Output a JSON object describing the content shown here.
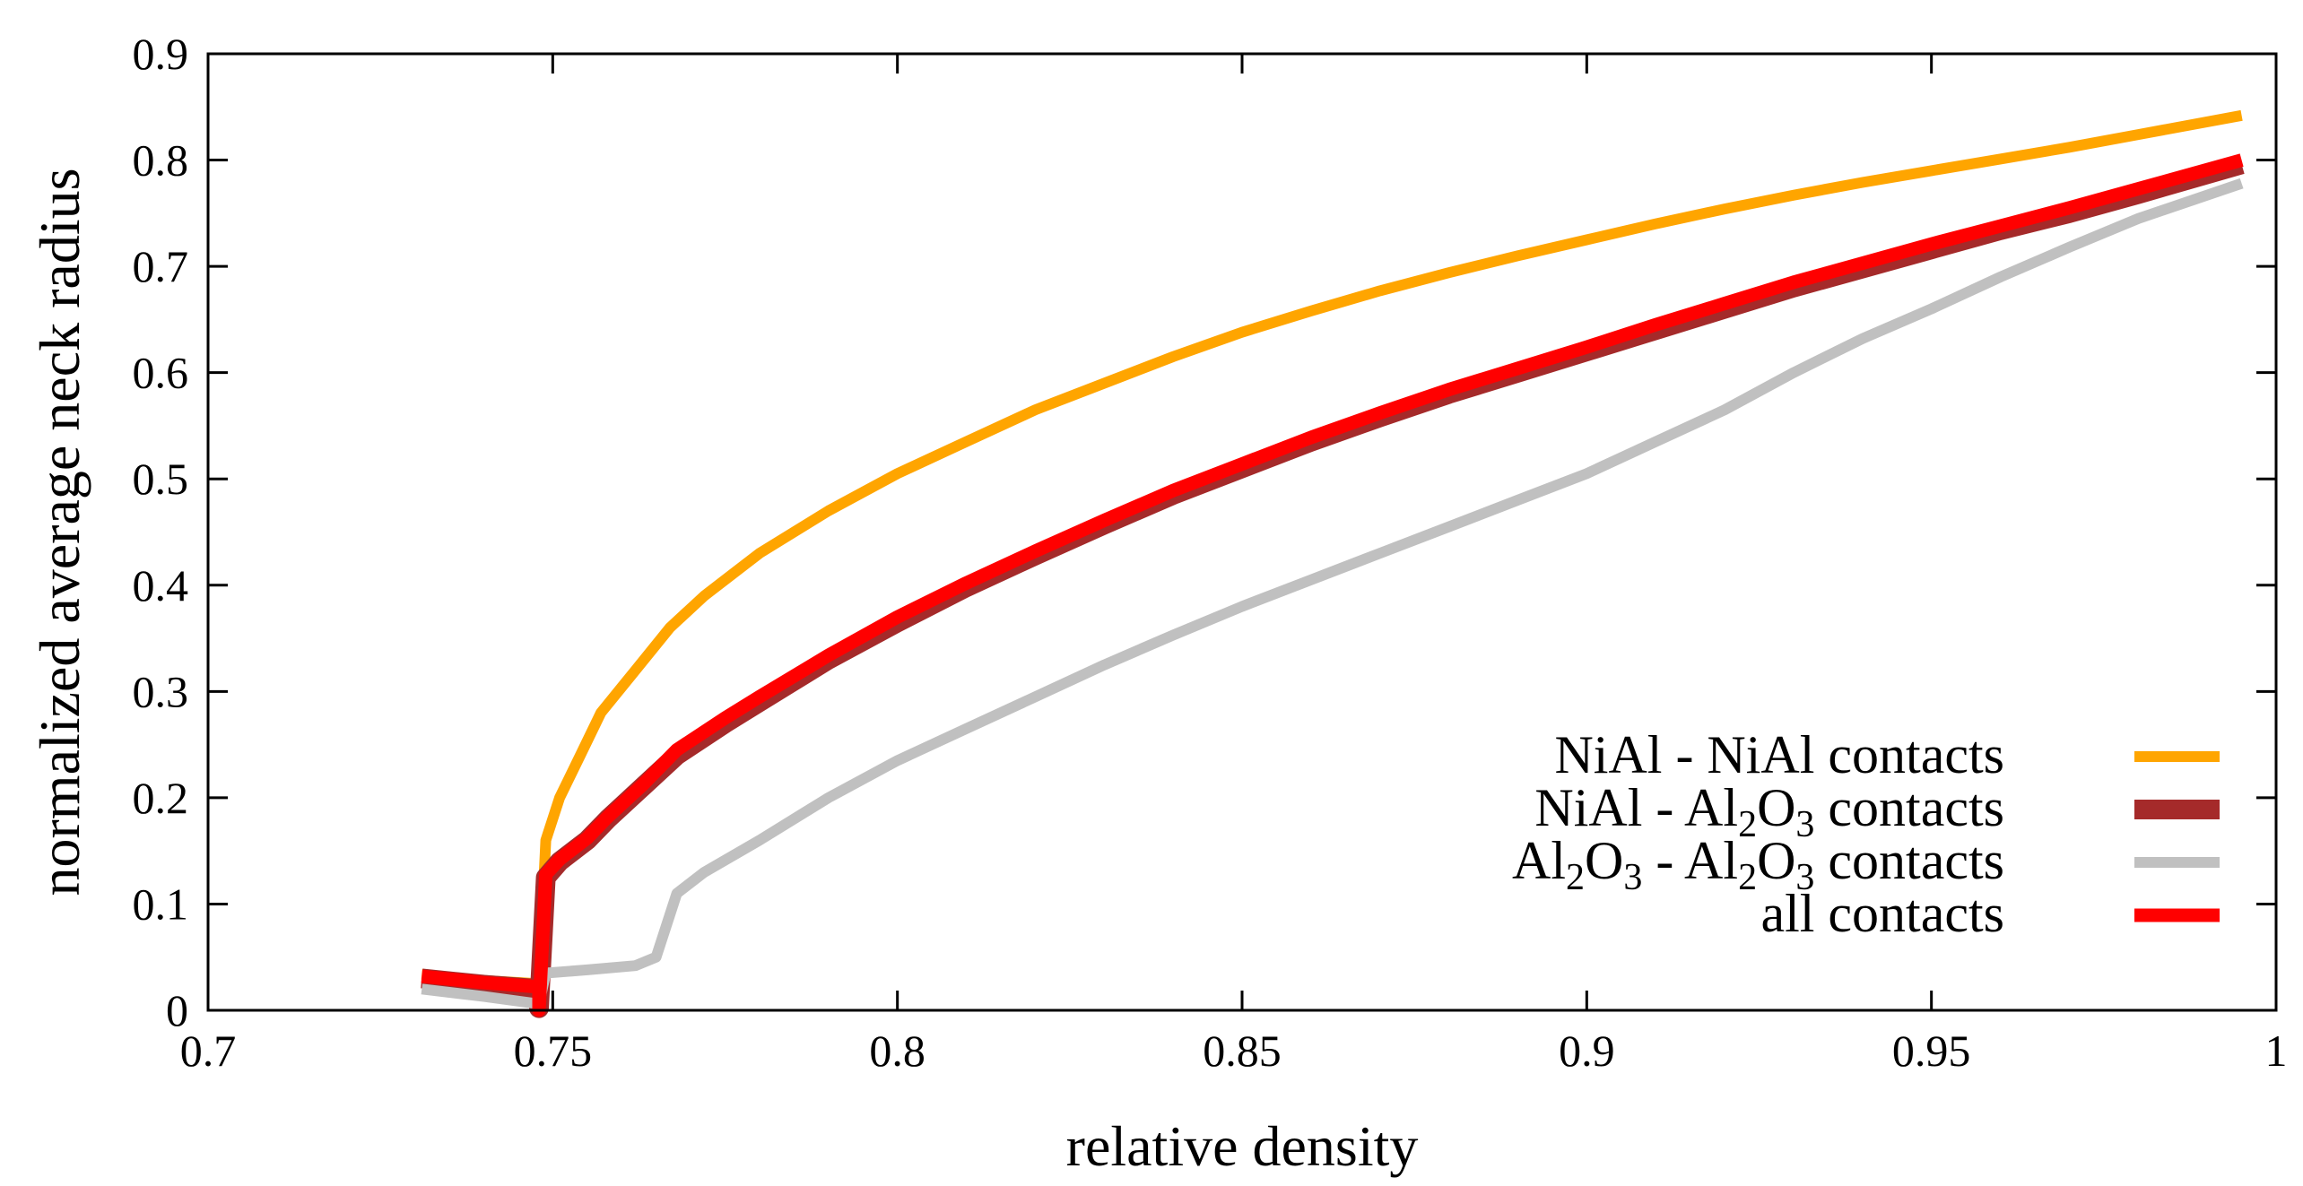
{
  "chart_data": {
    "type": "line",
    "title": "",
    "xlabel": "relative density",
    "ylabel": "normalized average neck radius",
    "xlim": [
      0.7,
      1.0
    ],
    "ylim": [
      0,
      0.9
    ],
    "xticks": [
      0.7,
      0.75,
      0.8,
      0.85,
      0.9,
      0.95,
      1.0
    ],
    "xtick_labels": [
      "0.7",
      "0.75",
      "0.8",
      "0.85",
      "0.9",
      "0.95",
      "1"
    ],
    "yticks": [
      0,
      0.1,
      0.2,
      0.3,
      0.4,
      0.5,
      0.6,
      0.7,
      0.8,
      0.9
    ],
    "ytick_labels": [
      "0",
      "0.1",
      "0.2",
      "0.3",
      "0.4",
      "0.5",
      "0.6",
      "0.7",
      "0.8",
      "0.9"
    ],
    "grid": false,
    "legend_position": "bottom-right",
    "series": [
      {
        "name": "NiAl - NiAl contacts",
        "label_parts": [
          [
            "NiAl - NiAl contacts",
            false
          ]
        ],
        "color": "#ffa500",
        "weight": "normal",
        "points": [
          [
            0.731,
            0.034
          ],
          [
            0.74,
            0.028
          ],
          [
            0.748,
            0.025
          ],
          [
            0.749,
            0.16
          ],
          [
            0.751,
            0.2
          ],
          [
            0.754,
            0.24
          ],
          [
            0.757,
            0.28
          ],
          [
            0.762,
            0.32
          ],
          [
            0.767,
            0.36
          ],
          [
            0.772,
            0.39
          ],
          [
            0.78,
            0.43
          ],
          [
            0.79,
            0.47
          ],
          [
            0.8,
            0.505
          ],
          [
            0.81,
            0.535
          ],
          [
            0.82,
            0.565
          ],
          [
            0.83,
            0.59
          ],
          [
            0.84,
            0.615
          ],
          [
            0.85,
            0.638
          ],
          [
            0.86,
            0.658
          ],
          [
            0.87,
            0.677
          ],
          [
            0.88,
            0.694
          ],
          [
            0.89,
            0.71
          ],
          [
            0.9,
            0.725
          ],
          [
            0.91,
            0.74
          ],
          [
            0.92,
            0.754
          ],
          [
            0.93,
            0.767
          ],
          [
            0.94,
            0.779
          ],
          [
            0.95,
            0.79
          ],
          [
            0.96,
            0.801
          ],
          [
            0.97,
            0.812
          ],
          [
            0.98,
            0.824
          ],
          [
            0.995,
            0.842
          ]
        ]
      },
      {
        "name": "NiAl - Al2O3 contacts",
        "label_parts": [
          [
            "NiAl - Al",
            false
          ],
          [
            "2",
            true
          ],
          [
            "O",
            false
          ],
          [
            "3",
            true
          ],
          [
            " contacts",
            false
          ]
        ],
        "color": "#a52a2a",
        "weight": "thick",
        "points": [
          [
            0.731,
            0.03
          ],
          [
            0.74,
            0.024
          ],
          [
            0.748,
            0.02
          ],
          [
            0.748,
            0.002
          ],
          [
            0.749,
            0.125
          ],
          [
            0.751,
            0.14
          ],
          [
            0.755,
            0.16
          ],
          [
            0.758,
            0.18
          ],
          [
            0.763,
            0.21
          ],
          [
            0.768,
            0.24
          ],
          [
            0.775,
            0.27
          ],
          [
            0.78,
            0.29
          ],
          [
            0.79,
            0.33
          ],
          [
            0.8,
            0.365
          ],
          [
            0.81,
            0.398
          ],
          [
            0.82,
            0.428
          ],
          [
            0.83,
            0.457
          ],
          [
            0.84,
            0.485
          ],
          [
            0.85,
            0.51
          ],
          [
            0.86,
            0.535
          ],
          [
            0.87,
            0.558
          ],
          [
            0.88,
            0.58
          ],
          [
            0.89,
            0.6
          ],
          [
            0.9,
            0.62
          ],
          [
            0.91,
            0.64
          ],
          [
            0.92,
            0.66
          ],
          [
            0.93,
            0.68
          ],
          [
            0.94,
            0.698
          ],
          [
            0.95,
            0.716
          ],
          [
            0.96,
            0.734
          ],
          [
            0.97,
            0.75
          ],
          [
            0.98,
            0.768
          ],
          [
            0.995,
            0.796
          ]
        ]
      },
      {
        "name": "Al2O3 - Al2O3 contacts",
        "label_parts": [
          [
            "Al",
            false
          ],
          [
            "2",
            true
          ],
          [
            "O",
            false
          ],
          [
            "3",
            true
          ],
          [
            " - Al",
            false
          ],
          [
            "2",
            true
          ],
          [
            "O",
            false
          ],
          [
            "3",
            true
          ],
          [
            " contacts",
            false
          ]
        ],
        "color": "#c0c0c0",
        "weight": "normal",
        "points": [
          [
            0.731,
            0.02
          ],
          [
            0.74,
            0.013
          ],
          [
            0.748,
            0.006
          ],
          [
            0.749,
            0.035
          ],
          [
            0.755,
            0.038
          ],
          [
            0.762,
            0.042
          ],
          [
            0.765,
            0.05
          ],
          [
            0.768,
            0.11
          ],
          [
            0.772,
            0.13
          ],
          [
            0.78,
            0.16
          ],
          [
            0.79,
            0.2
          ],
          [
            0.8,
            0.235
          ],
          [
            0.81,
            0.265
          ],
          [
            0.82,
            0.295
          ],
          [
            0.83,
            0.325
          ],
          [
            0.84,
            0.353
          ],
          [
            0.85,
            0.38
          ],
          [
            0.86,
            0.405
          ],
          [
            0.87,
            0.43
          ],
          [
            0.88,
            0.455
          ],
          [
            0.89,
            0.48
          ],
          [
            0.9,
            0.505
          ],
          [
            0.91,
            0.535
          ],
          [
            0.92,
            0.565
          ],
          [
            0.93,
            0.6
          ],
          [
            0.94,
            0.632
          ],
          [
            0.95,
            0.66
          ],
          [
            0.96,
            0.69
          ],
          [
            0.97,
            0.718
          ],
          [
            0.98,
            0.745
          ],
          [
            0.995,
            0.778
          ]
        ]
      },
      {
        "name": "all contacts",
        "label_parts": [
          [
            "all contacts",
            false
          ]
        ],
        "color": "#ff0000",
        "weight": "normal-thick",
        "points": [
          [
            0.731,
            0.032
          ],
          [
            0.74,
            0.026
          ],
          [
            0.748,
            0.022
          ],
          [
            0.748,
            0.0
          ],
          [
            0.749,
            0.128
          ],
          [
            0.751,
            0.142
          ],
          [
            0.755,
            0.162
          ],
          [
            0.758,
            0.182
          ],
          [
            0.763,
            0.212
          ],
          [
            0.768,
            0.245
          ],
          [
            0.775,
            0.275
          ],
          [
            0.78,
            0.295
          ],
          [
            0.79,
            0.334
          ],
          [
            0.8,
            0.37
          ],
          [
            0.81,
            0.402
          ],
          [
            0.82,
            0.432
          ],
          [
            0.83,
            0.461
          ],
          [
            0.84,
            0.489
          ],
          [
            0.85,
            0.514
          ],
          [
            0.86,
            0.539
          ],
          [
            0.87,
            0.562
          ],
          [
            0.88,
            0.584
          ],
          [
            0.89,
            0.604
          ],
          [
            0.9,
            0.624
          ],
          [
            0.91,
            0.645
          ],
          [
            0.92,
            0.665
          ],
          [
            0.93,
            0.685
          ],
          [
            0.94,
            0.703
          ],
          [
            0.95,
            0.721
          ],
          [
            0.96,
            0.738
          ],
          [
            0.97,
            0.755
          ],
          [
            0.98,
            0.773
          ],
          [
            0.995,
            0.8
          ]
        ]
      }
    ]
  }
}
